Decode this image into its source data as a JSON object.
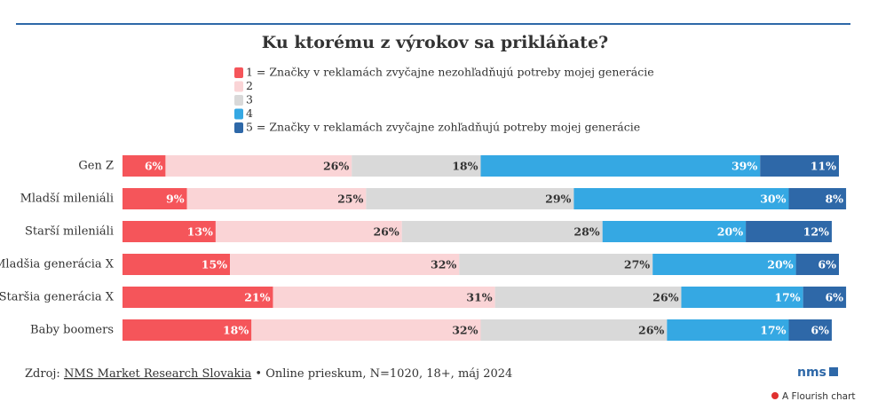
{
  "chart_data": {
    "type": "stacked-bar-horizontal",
    "title": "Ku ktorému z výrokov sa prikláňate?",
    "categories": [
      "Gen Z",
      "Mladší mileniáli",
      "Starší mileniáli",
      "Mladšia generácia X",
      "Staršia generácia  X",
      "Baby boomers"
    ],
    "xlim": [
      0,
      100
    ],
    "series": [
      {
        "name": "1 = Značky v reklamách zvyčajne nezohľadňujú potreby mojej generácie",
        "color": "#f5555a",
        "values": [
          6,
          9,
          13,
          15,
          21,
          18
        ],
        "value_labels": [
          "6%",
          "9%",
          "13%",
          "15%",
          "21%",
          "18%"
        ]
      },
      {
        "name": "2",
        "color": "#fad4d6",
        "values": [
          26,
          25,
          26,
          32,
          31,
          32
        ],
        "value_labels": [
          "26%",
          "25%",
          "26%",
          "32%",
          "31%",
          "32%"
        ]
      },
      {
        "name": "3",
        "color": "#d9d9d9",
        "values": [
          18,
          29,
          28,
          27,
          26,
          26
        ],
        "value_labels": [
          "18%",
          "29%",
          "28%",
          "27%",
          "26%",
          "26%"
        ]
      },
      {
        "name": "4",
        "color": "#35a8e3",
        "values": [
          39,
          30,
          20,
          20,
          17,
          17
        ],
        "value_labels": [
          "39%",
          "30%",
          "20%",
          "20%",
          "17%",
          "17%"
        ]
      },
      {
        "name": "5 = Značky v reklamách zvyčajne zohľadňujú potreby mojej generácie",
        "color": "#2e68a8",
        "values": [
          11,
          8,
          12,
          6,
          6,
          6
        ],
        "value_labels": [
          "11%",
          "8%",
          "12%",
          "6%",
          "6%",
          "6%"
        ]
      }
    ]
  },
  "footer": {
    "prefix": "Zdroj:",
    "source": "NMS Market Research Slovakia",
    "note": "• Online prieskum, N=1020, 18+, máj 2024",
    "logo": "nms",
    "credit": "A Flourish chart"
  }
}
